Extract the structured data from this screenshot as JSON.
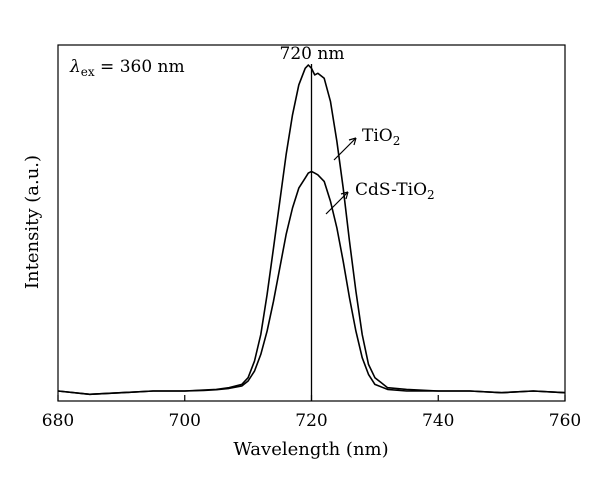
{
  "chart_data": {
    "type": "line",
    "title": "",
    "xlabel": "Wavelength (nm)",
    "ylabel": "Intensity (a.u.)",
    "xlim": [
      680,
      760
    ],
    "ylim": [
      0,
      1.07
    ],
    "x_ticks": [
      680,
      700,
      720,
      740,
      760
    ],
    "x_tick_labels": [
      "680",
      "700",
      "720",
      "740",
      "760"
    ],
    "y_ticks_labeled": false,
    "grid": false,
    "annotations": {
      "excitation": {
        "lambda": "λ",
        "subscript": "ex",
        "text": " = 360 nm"
      },
      "peak_label": "720 nm",
      "peak_x": 720
    },
    "series": [
      {
        "name": "TiO2",
        "label_main": "TiO",
        "label_sub": "2",
        "x": [
          680,
          685,
          690,
          695,
          700,
          703,
          705,
          707,
          709,
          710,
          711,
          712,
          713,
          714,
          715,
          716,
          717,
          718,
          719,
          719.5,
          720,
          720.5,
          721,
          722,
          723,
          724,
          725,
          726,
          727,
          728,
          729,
          730,
          732,
          735,
          740,
          745,
          750,
          755,
          760
        ],
        "y": [
          0.03,
          0.02,
          0.025,
          0.03,
          0.03,
          0.033,
          0.035,
          0.04,
          0.05,
          0.07,
          0.12,
          0.2,
          0.32,
          0.46,
          0.6,
          0.74,
          0.86,
          0.95,
          1.0,
          1.01,
          1.0,
          0.98,
          0.985,
          0.97,
          0.9,
          0.78,
          0.64,
          0.48,
          0.33,
          0.2,
          0.11,
          0.07,
          0.04,
          0.035,
          0.03,
          0.03,
          0.025,
          0.03,
          0.025
        ]
      },
      {
        "name": "CdS-TiO2",
        "label_main": "CdS-TiO",
        "label_sub": "2",
        "x": [
          680,
          685,
          690,
          695,
          700,
          703,
          705,
          707,
          709,
          710,
          711,
          712,
          713,
          714,
          715,
          716,
          717,
          718,
          719,
          719.5,
          720,
          720.5,
          721,
          722,
          723,
          724,
          725,
          726,
          727,
          728,
          729,
          730,
          732,
          735,
          740,
          745,
          750,
          755,
          760
        ],
        "y": [
          0.03,
          0.02,
          0.025,
          0.03,
          0.03,
          0.032,
          0.034,
          0.038,
          0.045,
          0.06,
          0.09,
          0.14,
          0.21,
          0.3,
          0.4,
          0.5,
          0.58,
          0.64,
          0.67,
          0.685,
          0.69,
          0.685,
          0.68,
          0.66,
          0.6,
          0.52,
          0.42,
          0.31,
          0.21,
          0.13,
          0.08,
          0.05,
          0.035,
          0.03,
          0.03,
          0.03,
          0.025,
          0.03,
          0.025
        ]
      }
    ]
  }
}
